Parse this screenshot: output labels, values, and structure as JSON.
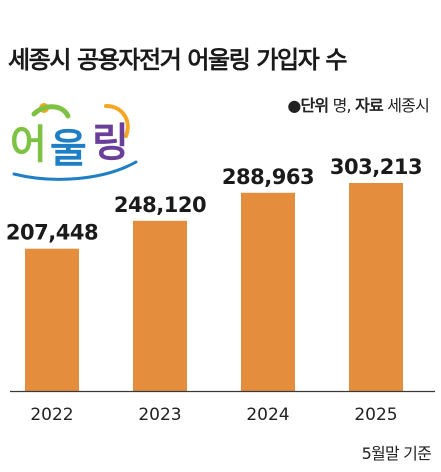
{
  "header": {
    "title": "세종시 공용자전거 어울링 가입자 수",
    "source_prefix": "●단위",
    "source_unit": " 명, ",
    "source_label": "자료",
    "source_name": " 세종시"
  },
  "logo": {
    "text": "어울링",
    "colors": {
      "green": "#7dc242",
      "blue": "#1f7fc4",
      "purple": "#6a3f99",
      "orange": "#f5a623"
    }
  },
  "chart_data": {
    "type": "bar",
    "title": "세종시 공용자전거 어울링 가입자 수",
    "categories": [
      "2022",
      "2023",
      "2024",
      "2025"
    ],
    "values": [
      207448,
      248120,
      288963,
      303213
    ],
    "value_labels": [
      "207,448",
      "248,120",
      "288,963",
      "303,213"
    ],
    "unit": "명",
    "bar_color": "#e48e3d",
    "baseline_color": "#3a3a3a",
    "grid": false,
    "legend": "none"
  },
  "footer": {
    "note": "5월말 기준"
  }
}
